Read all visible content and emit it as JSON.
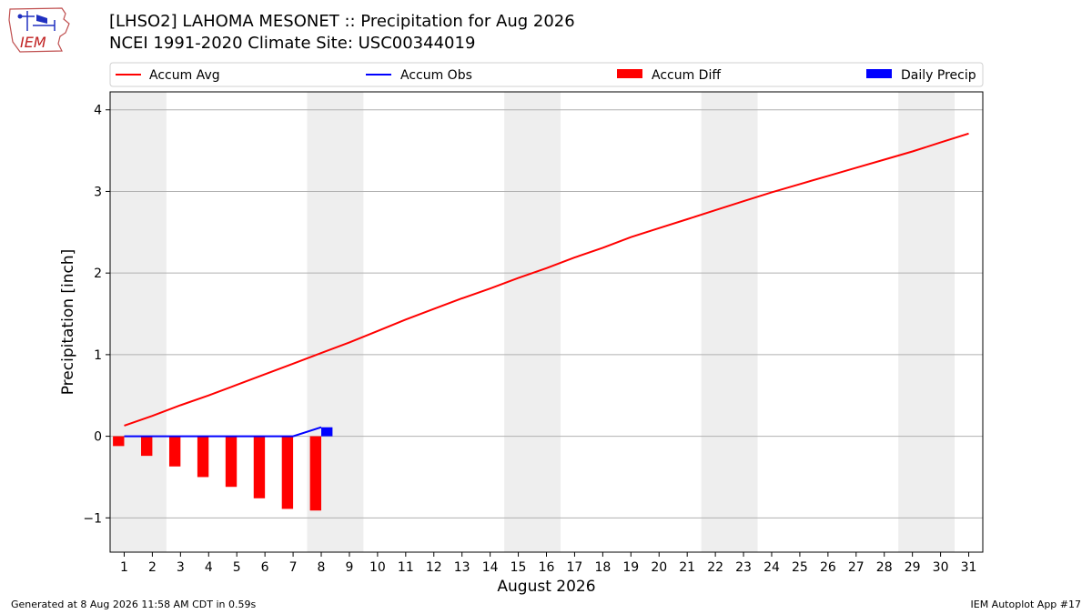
{
  "logo": {
    "text": "IEM"
  },
  "header": {
    "title_line1": "[LHSO2] LAHOMA MESONET :: Precipitation for Aug 2026",
    "title_line2": "NCEI 1991-2020 Climate Site: USC00344019"
  },
  "footer": {
    "generated": "Generated at 8 Aug 2026 11:58 AM CDT in 0.59s",
    "app": "IEM Autoplot App #17"
  },
  "colors": {
    "accum_avg": "#ff0000",
    "accum_obs": "#0000ff",
    "accum_diff": "#ff0000",
    "daily_precip": "#0000ff",
    "weekend_shade": "#eeeeee",
    "grid": "#b0b0b0"
  },
  "chart_data": {
    "type": "line",
    "xlabel": "August 2026",
    "ylabel": "Precipitation [inch]",
    "xlim": [
      0.5,
      31.5
    ],
    "ylim": [
      -1.42,
      4.22
    ],
    "y_ticks": [
      -1,
      0,
      1,
      2,
      3,
      4
    ],
    "y_tick_labels": [
      "−1",
      "0",
      "1",
      "2",
      "3",
      "4"
    ],
    "x_ticks": [
      1,
      2,
      3,
      4,
      5,
      6,
      7,
      8,
      9,
      10,
      11,
      12,
      13,
      14,
      15,
      16,
      17,
      18,
      19,
      20,
      21,
      22,
      23,
      24,
      25,
      26,
      27,
      28,
      29,
      30,
      31
    ],
    "grid": "horizontal",
    "legend": {
      "placement": "top",
      "entries": [
        {
          "label": "Accum Avg",
          "kind": "line",
          "color": "#ff0000"
        },
        {
          "label": "Accum Obs",
          "kind": "line",
          "color": "#0000ff"
        },
        {
          "label": "Accum Diff",
          "kind": "bar",
          "color": "#ff0000"
        },
        {
          "label": "Daily Precip",
          "kind": "bar",
          "color": "#0000ff"
        }
      ]
    },
    "weekend_days": [
      [
        1,
        2
      ],
      [
        8,
        9
      ],
      [
        15,
        16
      ],
      [
        22,
        23
      ],
      [
        29,
        30
      ]
    ],
    "series": [
      {
        "name": "Accum Avg",
        "type": "line",
        "x": [
          1,
          2,
          3,
          4,
          5,
          6,
          7,
          8,
          9,
          10,
          11,
          12,
          13,
          14,
          15,
          16,
          17,
          18,
          19,
          20,
          21,
          22,
          23,
          24,
          25,
          26,
          27,
          28,
          29,
          30,
          31
        ],
        "values": [
          0.13,
          0.25,
          0.38,
          0.5,
          0.63,
          0.76,
          0.89,
          1.02,
          1.15,
          1.29,
          1.43,
          1.56,
          1.69,
          1.81,
          1.94,
          2.06,
          2.19,
          2.31,
          2.44,
          2.55,
          2.66,
          2.77,
          2.88,
          2.99,
          3.09,
          3.19,
          3.29,
          3.39,
          3.49,
          3.6,
          3.71
        ]
      },
      {
        "name": "Accum Obs",
        "type": "line",
        "x": [
          1,
          2,
          3,
          4,
          5,
          6,
          7,
          8
        ],
        "values": [
          0,
          0,
          0,
          0,
          0,
          0,
          0,
          0.11
        ]
      },
      {
        "name": "Accum Diff",
        "type": "bar",
        "x": [
          1,
          2,
          3,
          4,
          5,
          6,
          7,
          8
        ],
        "values": [
          -0.12,
          -0.24,
          -0.37,
          -0.5,
          -0.62,
          -0.76,
          -0.89,
          -0.91
        ]
      },
      {
        "name": "Daily Precip",
        "type": "bar",
        "x": [
          1,
          2,
          3,
          4,
          5,
          6,
          7,
          8
        ],
        "values": [
          0,
          0,
          0,
          0,
          0,
          0,
          0,
          0.11
        ]
      }
    ]
  }
}
